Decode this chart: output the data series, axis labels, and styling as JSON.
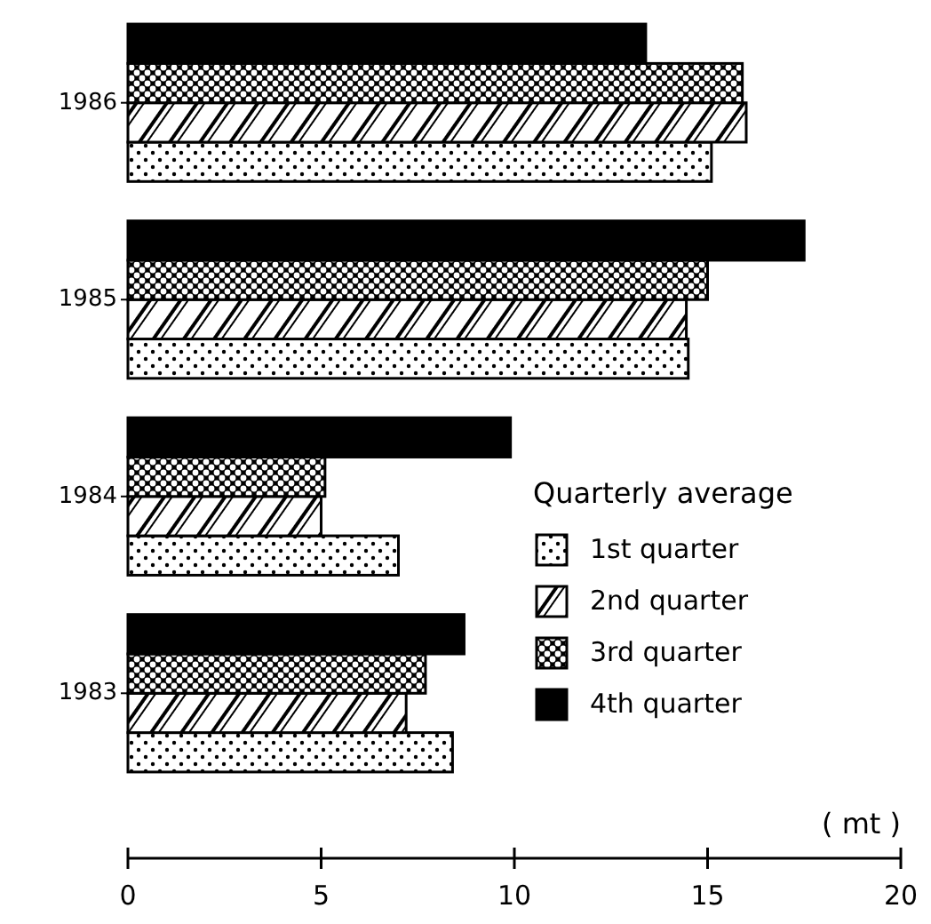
{
  "chart_data": {
    "type": "bar",
    "orientation": "horizontal",
    "categories": [
      "1986",
      "1985",
      "1984",
      "1983"
    ],
    "series": [
      {
        "name": "1st quarter",
        "color": "#000000",
        "values": [
          15.1,
          14.5,
          7.0,
          8.4
        ]
      },
      {
        "name": "2nd quarter",
        "color": "#000000",
        "values": [
          16.0,
          14.45,
          5.0,
          7.2
        ]
      },
      {
        "name": "3rd quarter",
        "color": "#000000",
        "values": [
          15.9,
          15.0,
          5.1,
          7.7
        ]
      },
      {
        "name": "4th quarter",
        "color": "#000000",
        "values": [
          13.4,
          17.5,
          9.9,
          8.7
        ]
      }
    ],
    "xlim": [
      0,
      20
    ],
    "xticks": [
      0,
      5,
      10,
      15,
      20
    ],
    "xlabel": "( mt )",
    "legend_title": "Quarterly average",
    "legend": "bottom right",
    "grid": false
  }
}
